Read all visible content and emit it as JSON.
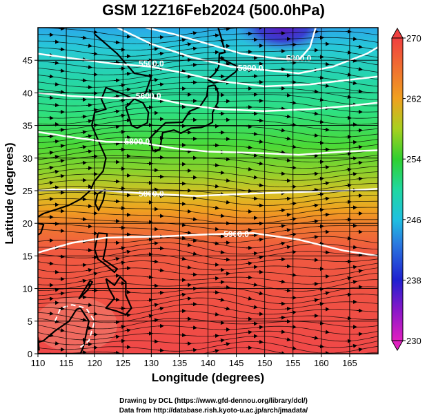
{
  "title": "GSM 12Z16Feb2024 (500.0hPa)",
  "xlabel": "Longitude (degrees)",
  "ylabel": "Latitude (degrees)",
  "credits": [
    "Drawing by DCL (https://www.gfd-dennou.org/library/dcl/)",
    "Data from http://database.rish.kyoto-u.ac.jp/arch/jmadata/"
  ],
  "chart_data": {
    "type": "heatmap",
    "x_range": [
      110,
      170
    ],
    "y_range": [
      0,
      50
    ],
    "x_ticks": [
      "110",
      "115",
      "120",
      "125",
      "130",
      "135",
      "140",
      "145",
      "150",
      "155",
      "160",
      "165"
    ],
    "y_ticks": [
      "0",
      "5",
      "10",
      "15",
      "20",
      "25",
      "30",
      "35",
      "40",
      "45"
    ],
    "colorbar": {
      "labels": [
        "230",
        "238",
        "246",
        "254",
        "262",
        "270"
      ],
      "range": [
        230,
        270
      ],
      "colors": [
        "#e020c0",
        "#2020d0",
        "#20c0e0",
        "#30d030",
        "#f0a020",
        "#f04040"
      ]
    },
    "contours": [
      {
        "label": "5200.0",
        "lon": 156,
        "lat": 45.3
      },
      {
        "label": "5300.0",
        "lon": 147.5,
        "lat": 43.8
      },
      {
        "label": "5500.0",
        "lon": 130,
        "lat": 44.5
      },
      {
        "label": "5600.0",
        "lon": 129.5,
        "lat": 39.5
      },
      {
        "label": "5800.0",
        "lon": 127.5,
        "lat": 32.5
      },
      {
        "label": "5800.0",
        "lon": 130,
        "lat": 24.5
      },
      {
        "label": "5900.0",
        "lon": 145,
        "lat": 18.3
      }
    ]
  }
}
